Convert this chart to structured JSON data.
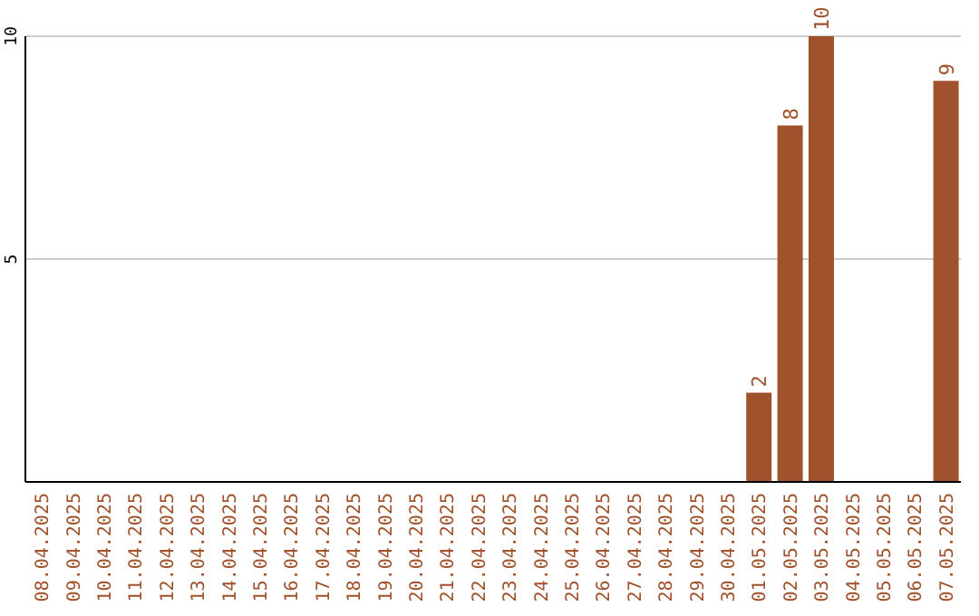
{
  "chart_data": {
    "type": "bar",
    "categories": [
      "08.04.2025",
      "09.04.2025",
      "10.04.2025",
      "11.04.2025",
      "12.04.2025",
      "13.04.2025",
      "14.04.2025",
      "15.04.2025",
      "16.04.2025",
      "17.04.2025",
      "18.04.2025",
      "19.04.2025",
      "20.04.2025",
      "21.04.2025",
      "22.04.2025",
      "23.04.2025",
      "24.04.2025",
      "25.04.2025",
      "26.04.2025",
      "27.04.2025",
      "28.04.2025",
      "29.04.2025",
      "30.04.2025",
      "01.05.2025",
      "02.05.2025",
      "03.05.2025",
      "04.05.2025",
      "05.05.2025",
      "06.05.2025",
      "07.05.2025"
    ],
    "values": [
      0,
      0,
      0,
      0,
      0,
      0,
      0,
      0,
      0,
      0,
      0,
      0,
      0,
      0,
      0,
      0,
      0,
      0,
      0,
      0,
      0,
      0,
      0,
      2,
      8,
      10,
      0,
      0,
      0,
      9
    ],
    "value_labels": [
      null,
      null,
      null,
      null,
      null,
      null,
      null,
      null,
      null,
      null,
      null,
      null,
      null,
      null,
      null,
      null,
      null,
      null,
      null,
      null,
      null,
      null,
      null,
      "2",
      "8",
      "10",
      null,
      null,
      null,
      "9"
    ],
    "color": "#a0522d",
    "ylim": [
      0,
      10
    ],
    "yticks": [
      5,
      10
    ],
    "grid": "y"
  }
}
